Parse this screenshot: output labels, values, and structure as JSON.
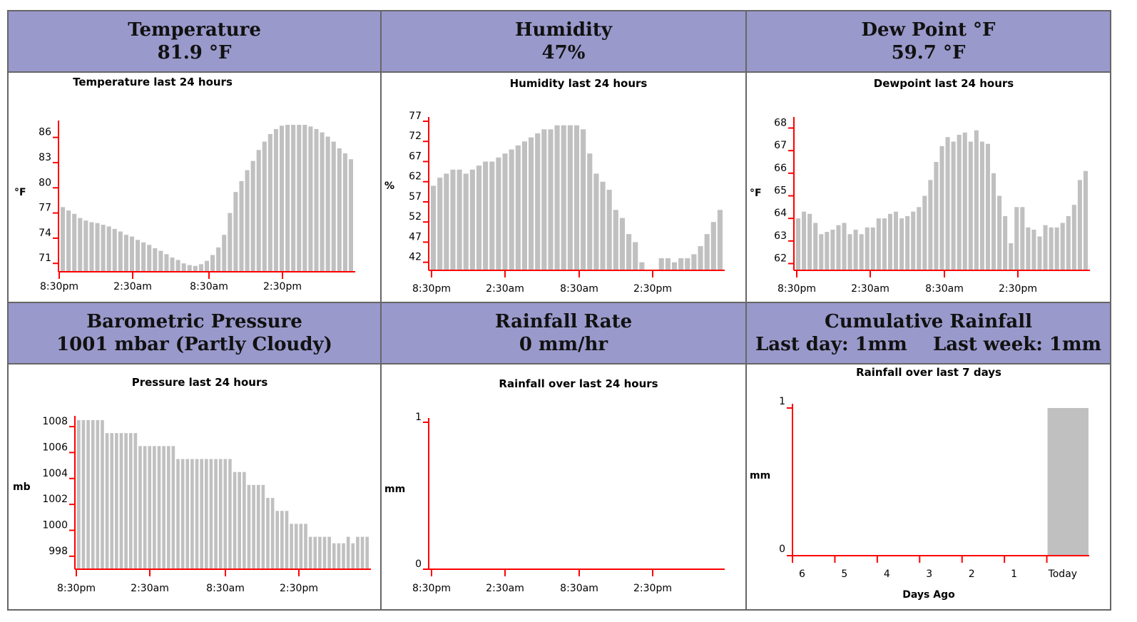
{
  "panels": [
    {
      "title": "Temperature",
      "value": "81.9 °F"
    },
    {
      "title": "Humidity",
      "value": "47%"
    },
    {
      "title": "Dew Point °F",
      "value": "59.7 °F"
    },
    {
      "title": "Barometric Pressure",
      "value": "1001 mbar (Partly Cloudy)"
    },
    {
      "title": "Rainfall Rate",
      "value": "0 mm/hr"
    },
    {
      "title": "Cumulative Rainfall",
      "value_day": "Last day: 1mm",
      "value_week": "Last week: 1mm"
    }
  ],
  "colors": {
    "header_bg": "#9999cc",
    "axis": "#ff0000",
    "bar": "#c0c0c0",
    "border": "#666666"
  },
  "chart_data": [
    {
      "type": "bar",
      "title": "Temperature last 24 hours",
      "ylabel": "°F",
      "yticks": [
        71,
        74,
        77,
        80,
        83,
        86
      ],
      "ylim": [
        70,
        87.5
      ],
      "xticks": [
        "8:30pm",
        "2:30am",
        "8:30am",
        "2:30pm"
      ],
      "values": [
        77.7,
        77.3,
        76.9,
        76.4,
        76.1,
        75.9,
        75.8,
        75.6,
        75.4,
        75.1,
        74.8,
        74.4,
        74.2,
        73.8,
        73.5,
        73.2,
        72.8,
        72.5,
        72.1,
        71.7,
        71.4,
        71.0,
        70.8,
        70.7,
        70.9,
        71.3,
        72.0,
        72.9,
        74.4,
        77.0,
        79.5,
        80.8,
        82.1,
        83.2,
        84.5,
        85.5,
        86.4,
        87.0,
        87.4,
        87.5,
        87.5,
        87.5,
        87.5,
        87.3,
        87.0,
        86.6,
        86.1,
        85.5,
        84.7,
        84.1,
        83.4
      ]
    },
    {
      "type": "bar",
      "title": "Humidity last 24 hours",
      "ylabel": "%",
      "yticks": [
        42,
        47,
        52,
        57,
        62,
        67,
        72,
        77
      ],
      "ylim": [
        40,
        77
      ],
      "xticks": [
        "8:30pm",
        "2:30am",
        "8:30am",
        "2:30pm"
      ],
      "values": [
        61,
        63,
        64,
        65,
        65,
        64,
        65,
        66,
        67,
        67,
        68,
        69,
        70,
        71,
        72,
        73,
        74,
        75,
        75,
        76,
        76,
        76,
        76,
        75,
        69,
        64,
        62,
        60,
        55,
        53,
        49,
        47,
        42,
        40,
        39,
        43,
        43,
        42,
        43,
        43,
        44,
        46,
        49,
        52,
        55
      ]
    },
    {
      "type": "bar",
      "title": "Dewpoint last 24 hours",
      "ylabel": "°F",
      "yticks": [
        62,
        63,
        64,
        65,
        66,
        67,
        68
      ],
      "ylim": [
        61.7,
        68.3
      ],
      "xticks": [
        "8:30pm",
        "2:30am",
        "8:30am",
        "2:30pm"
      ],
      "values": [
        64.0,
        64.3,
        64.2,
        63.8,
        63.3,
        63.4,
        63.5,
        63.7,
        63.8,
        63.3,
        63.5,
        63.3,
        63.6,
        63.6,
        64.0,
        64.0,
        64.2,
        64.3,
        64.0,
        64.1,
        64.3,
        64.5,
        65.0,
        65.7,
        66.5,
        67.2,
        67.6,
        67.4,
        67.7,
        67.8,
        67.4,
        67.9,
        67.4,
        67.3,
        66.0,
        65.0,
        64.1,
        62.9,
        64.5,
        64.5,
        63.6,
        63.5,
        63.2,
        63.7,
        63.6,
        63.6,
        63.8,
        64.1,
        64.6,
        65.7,
        66.1
      ]
    },
    {
      "type": "bar",
      "title": "Pressure last 24 hours",
      "ylabel": "mb",
      "yticks": [
        998,
        1000,
        1002,
        1004,
        1006,
        1008
      ],
      "ylim": [
        997,
        1008.5
      ],
      "xticks": [
        "8:30pm",
        "2:30am",
        "8:30am",
        "2:30pm"
      ],
      "values": [
        1008.5,
        1008.5,
        1008.5,
        1008.5,
        1008.5,
        1008.5,
        1007.5,
        1007.5,
        1007.5,
        1007.5,
        1007.5,
        1007.5,
        1007.5,
        1006.5,
        1006.5,
        1006.5,
        1006.5,
        1006.5,
        1006.5,
        1006.5,
        1006.5,
        1005.5,
        1005.5,
        1005.5,
        1005.5,
        1005.5,
        1005.5,
        1005.5,
        1005.5,
        1005.5,
        1005.5,
        1005.5,
        1005.5,
        1004.5,
        1004.5,
        1004.5,
        1003.5,
        1003.5,
        1003.5,
        1003.5,
        1002.5,
        1002.5,
        1001.5,
        1001.5,
        1001.5,
        1000.5,
        1000.5,
        1000.5,
        1000.5,
        999.5,
        999.5,
        999.5,
        999.5,
        999.5,
        999.0,
        999.0,
        999.0,
        999.5,
        999.0,
        999.5,
        999.5,
        999.5
      ]
    },
    {
      "type": "bar",
      "title": "Rainfall over last 24 hours",
      "ylabel": "mm",
      "yticks": [
        0,
        1
      ],
      "ylim": [
        0,
        1
      ],
      "xticks": [
        "8:30pm",
        "2:30am",
        "8:30am",
        "2:30pm"
      ],
      "values": []
    },
    {
      "type": "bar",
      "title": "Rainfall over last 7 days",
      "ylabel": "mm",
      "xlabel": "Days Ago",
      "yticks": [
        0,
        1
      ],
      "ylim": [
        0,
        1
      ],
      "categories": [
        "6",
        "5",
        "4",
        "3",
        "2",
        "1",
        "Today"
      ],
      "values": [
        0,
        0,
        0,
        0,
        0,
        0,
        1
      ]
    }
  ]
}
